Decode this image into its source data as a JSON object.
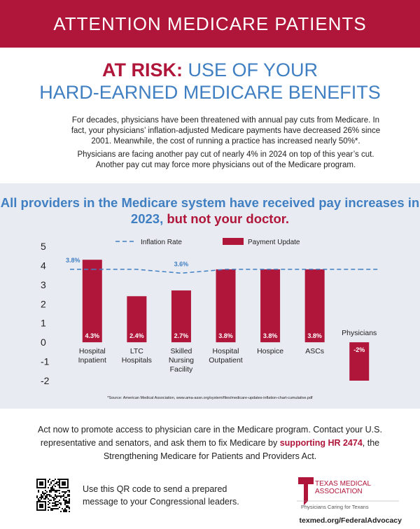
{
  "header": {
    "title": "ATTENTION MEDICARE PATIENTS"
  },
  "headline": {
    "emphasis": "AT RISK:",
    "line1": "USE OF YOUR",
    "line2": "HARD-EARNED MEDICARE BENEFITS"
  },
  "body": [
    "For decades, physicians have been threatened with annual pay cuts from Medicare. In fact, your physicians’ inflation-adjusted Medicare payments have decreased 26% since 2001. Meanwhile, the cost of running a practice has increased nearly 50%*.",
    "Physicians are facing another pay cut of nearly 4% in 2024 on top of this year’s cut. Another pay cut may force more physicians out of the Medicare program."
  ],
  "chart_data": {
    "type": "bar",
    "title": [
      "All providers in the Medicare system have received pay increases in 2023,",
      "but not your doctor."
    ],
    "categories": [
      [
        "Hospital",
        "Inpatient"
      ],
      [
        "LTC",
        "Hospitals"
      ],
      [
        "Skilled",
        "Nursing",
        "Facility"
      ],
      [
        "Hospital",
        "Outpatient"
      ],
      [
        "Hospice"
      ],
      [
        "ASCs"
      ],
      [
        "Physicians"
      ]
    ],
    "series": [
      {
        "name": "Payment Update",
        "type": "bar",
        "color": "#b0163a",
        "values": [
          4.3,
          2.4,
          2.7,
          3.8,
          3.8,
          3.8,
          -2
        ],
        "value_labels": [
          "4.3%",
          "2.4%",
          "2.7%",
          "3.8%",
          "3.8%",
          "3.8%",
          "-2%"
        ]
      },
      {
        "name": "Inflation Rate",
        "type": "line",
        "color": "#3f7fc2",
        "values": [
          3.8,
          3.8,
          3.6,
          3.8,
          3.8,
          3.8,
          3.8
        ],
        "value_labels": [
          "3.8%",
          null,
          "3.6%",
          null,
          null,
          null,
          null
        ]
      }
    ],
    "ylim": [
      -2,
      5
    ],
    "yticks": [
      -2,
      -1,
      0,
      1,
      2,
      3,
      4,
      5
    ],
    "source": "*Source: American Medical Association, www.ama-assn.org/system/files/medicare-updates-inflation-chart-cumulative.pdf"
  },
  "call_to_action": {
    "before": "Act now to promote access to physician care in the Medicare program. Contact your U.S. representative and senators, and ask them to fix Medicare by",
    "highlight": "supporting HR 2474",
    "after": ", the Strengthening Medicare for Patients and Providers Act."
  },
  "qr_text": "Use this QR code to send a prepared message to your Congressional leaders.",
  "logo": {
    "name": [
      "TEXAS MEDICAL",
      "ASSOCIATION"
    ],
    "tagline": "Physicians Caring for Texans"
  },
  "url": "texmed.org/FederalAdvocacy"
}
